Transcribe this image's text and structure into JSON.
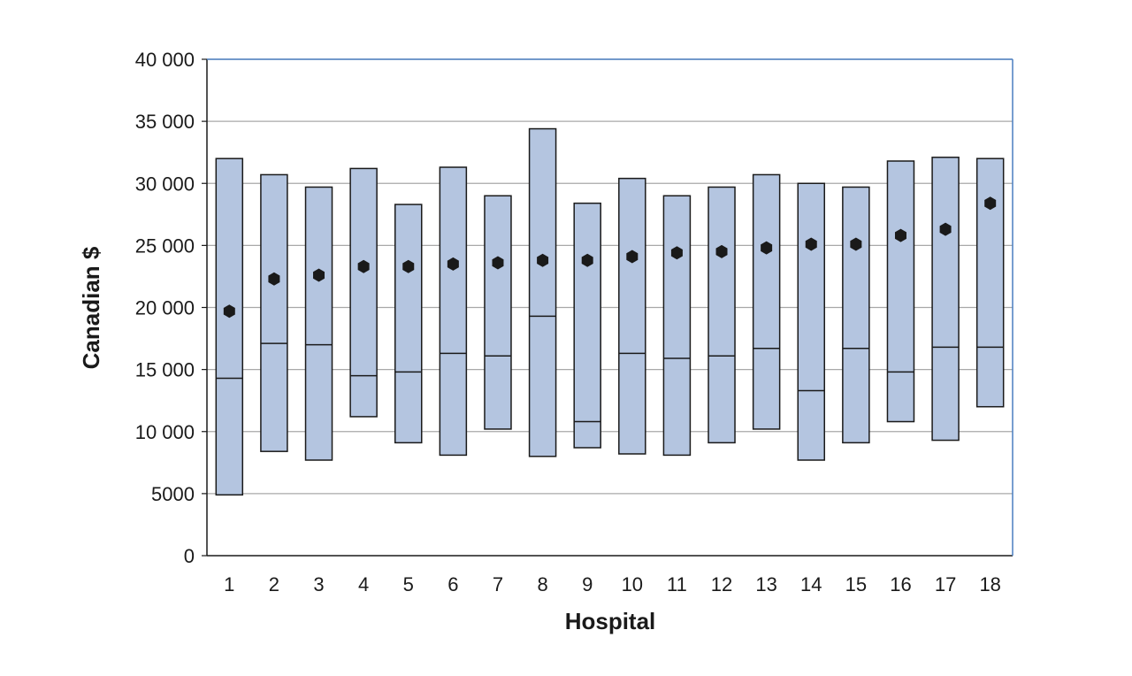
{
  "chart_data": {
    "type": "bar",
    "chart_subtype": "floating range bars with median line and mean marker",
    "xlabel": "Hospital",
    "ylabel": "Canadian $",
    "categories": [
      "1",
      "2",
      "3",
      "4",
      "5",
      "6",
      "7",
      "8",
      "9",
      "10",
      "11",
      "12",
      "13",
      "14",
      "15",
      "16",
      "17",
      "18"
    ],
    "ylim": [
      0,
      40000
    ],
    "yticks": [
      0,
      5000,
      10000,
      15000,
      20000,
      25000,
      30000,
      35000,
      40000
    ],
    "ytick_labels": [
      "0",
      "5000",
      "10 000",
      "15 000",
      "20 000",
      "25 000",
      "30 000",
      "35 000",
      "40 000"
    ],
    "grid": true,
    "series": [
      {
        "name": "",
        "values_low": [
          4900,
          8400,
          7700,
          11200,
          9100,
          8100,
          10200,
          8000,
          8700,
          8200,
          8100,
          9100,
          10200,
          7700,
          9100,
          10800,
          9300,
          12000
        ]
      },
      {
        "name": "",
        "values_high": [
          32000,
          30700,
          29700,
          31200,
          28300,
          31300,
          29000,
          34400,
          28400,
          30400,
          29000,
          29700,
          30700,
          30000,
          29700,
          31800,
          32100,
          32000
        ]
      },
      {
        "name": "",
        "values_median": [
          14300,
          17100,
          17000,
          14500,
          14800,
          16300,
          16100,
          19300,
          10800,
          16300,
          15900,
          16100,
          16700,
          13300,
          16700,
          14800,
          16800,
          16800
        ]
      },
      {
        "name": "",
        "values_mean": [
          19700,
          22300,
          22600,
          23300,
          23300,
          23500,
          23600,
          23800,
          23800,
          24100,
          24400,
          24500,
          24800,
          25100,
          25100,
          25800,
          26300,
          28400
        ]
      }
    ],
    "colors": {
      "box_fill": "#b4c5e0",
      "box_stroke": "#1a1a1a",
      "grid": "#a8a8a8",
      "frame_right_top": "#4a7fc1",
      "marker": "#1a1a1a"
    }
  }
}
